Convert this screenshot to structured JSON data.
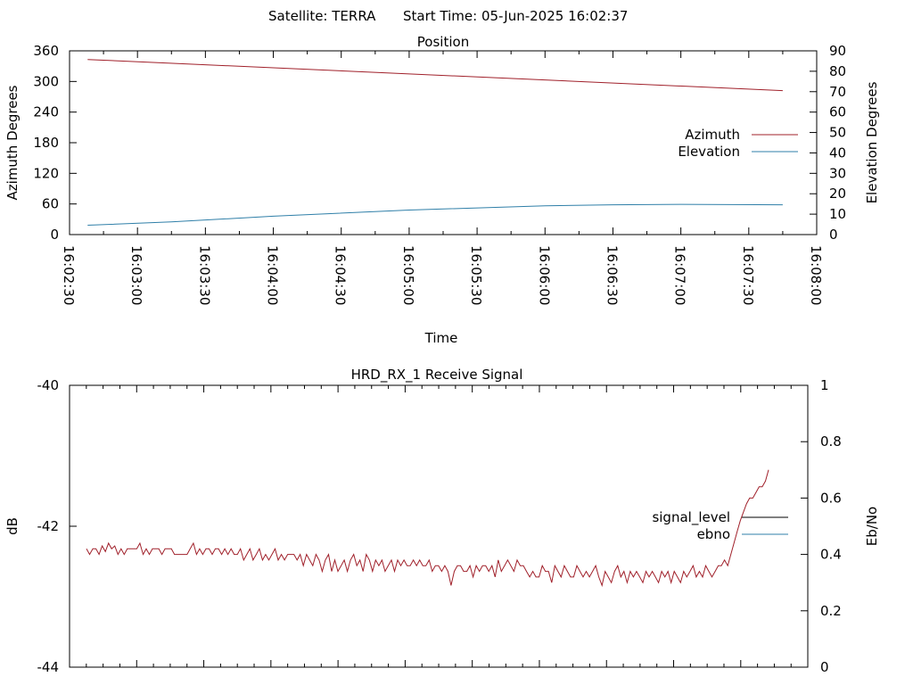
{
  "header": {
    "satellite": "Satellite: TERRA",
    "start_time": "Start Time: 05-Jun-2025 16:02:37"
  },
  "colors": {
    "red": "#a0202a",
    "blue": "#2f7fa8",
    "black": "#000000"
  },
  "chart_data": [
    {
      "type": "line",
      "title": "Position",
      "xlabel": "Time",
      "ylabel": "Azimuth Degrees",
      "y2label": "Elevation Degrees",
      "ylim": [
        0,
        360
      ],
      "y2lim": [
        0,
        90
      ],
      "yticks": [
        "0",
        "60",
        "120",
        "180",
        "240",
        "300",
        "360"
      ],
      "y2ticks": [
        "0",
        "10",
        "20",
        "30",
        "40",
        "50",
        "60",
        "70",
        "80",
        "90"
      ],
      "xticks": [
        "16:02:30",
        "16:03:00",
        "16:03:30",
        "16:04:00",
        "16:04:30",
        "16:05:00",
        "16:05:30",
        "16:06:00",
        "16:06:30",
        "16:07:00",
        "16:07:30",
        "16:08:00"
      ],
      "legend_position": "right",
      "series": [
        {
          "name": "Azimuth",
          "axis": "y",
          "x": [
            "16:02:38",
            "16:07:45"
          ],
          "values": [
            343,
            282
          ]
        },
        {
          "name": "Elevation",
          "axis": "y2",
          "x": [
            "16:02:38",
            "16:03:15",
            "16:04:00",
            "16:05:00",
            "16:06:00",
            "16:06:30",
            "16:07:00",
            "16:07:45"
          ],
          "values": [
            4.6,
            6.2,
            9.0,
            12.0,
            14.1,
            14.6,
            14.8,
            14.6
          ]
        }
      ]
    },
    {
      "type": "line",
      "title": "HRD_RX_1 Receive Signal",
      "ylabel": "dB",
      "y2label": "Eb/No",
      "ylim": [
        -44,
        -40
      ],
      "y2lim": [
        0,
        1
      ],
      "yticks": [
        "-44",
        "-42",
        "-40"
      ],
      "y2ticks": [
        "0",
        "0.2",
        "0.4",
        "0.6",
        "0.8",
        "1"
      ],
      "legend_position": "right",
      "series": [
        {
          "name": "signal_level",
          "axis": "y",
          "values": []
        },
        {
          "name": "ebno",
          "axis": "y2",
          "values": [
            0.42,
            0.4,
            0.42,
            0.42,
            0.4,
            0.43,
            0.41,
            0.44,
            0.42,
            0.43,
            0.4,
            0.42,
            0.4,
            0.42,
            0.42,
            0.42,
            0.42,
            0.44,
            0.4,
            0.42,
            0.4,
            0.42,
            0.42,
            0.42,
            0.4,
            0.42,
            0.42,
            0.42,
            0.4,
            0.4,
            0.4,
            0.4,
            0.4,
            0.42,
            0.44,
            0.4,
            0.42,
            0.4,
            0.42,
            0.42,
            0.4,
            0.42,
            0.42,
            0.4,
            0.42,
            0.4,
            0.42,
            0.4,
            0.4,
            0.42,
            0.38,
            0.4,
            0.42,
            0.38,
            0.4,
            0.42,
            0.38,
            0.4,
            0.38,
            0.4,
            0.42,
            0.38,
            0.4,
            0.38,
            0.4,
            0.4,
            0.4,
            0.38,
            0.4,
            0.36,
            0.4,
            0.38,
            0.36,
            0.4,
            0.38,
            0.34,
            0.38,
            0.4,
            0.34,
            0.38,
            0.34,
            0.36,
            0.38,
            0.34,
            0.38,
            0.4,
            0.36,
            0.38,
            0.34,
            0.4,
            0.38,
            0.34,
            0.38,
            0.36,
            0.38,
            0.34,
            0.36,
            0.38,
            0.34,
            0.38,
            0.36,
            0.38,
            0.36,
            0.36,
            0.38,
            0.36,
            0.38,
            0.36,
            0.36,
            0.38,
            0.34,
            0.36,
            0.36,
            0.34,
            0.36,
            0.34,
            0.29,
            0.34,
            0.36,
            0.36,
            0.34,
            0.34,
            0.36,
            0.32,
            0.36,
            0.34,
            0.36,
            0.36,
            0.34,
            0.36,
            0.32,
            0.38,
            0.34,
            0.36,
            0.38,
            0.36,
            0.34,
            0.38,
            0.36,
            0.36,
            0.34,
            0.32,
            0.34,
            0.32,
            0.32,
            0.36,
            0.34,
            0.34,
            0.3,
            0.36,
            0.34,
            0.32,
            0.36,
            0.34,
            0.32,
            0.32,
            0.36,
            0.34,
            0.32,
            0.34,
            0.32,
            0.34,
            0.36,
            0.32,
            0.29,
            0.34,
            0.32,
            0.3,
            0.34,
            0.36,
            0.32,
            0.34,
            0.3,
            0.34,
            0.32,
            0.34,
            0.32,
            0.3,
            0.34,
            0.32,
            0.34,
            0.32,
            0.3,
            0.34,
            0.32,
            0.34,
            0.3,
            0.34,
            0.32,
            0.3,
            0.34,
            0.32,
            0.34,
            0.36,
            0.32,
            0.34,
            0.32,
            0.36,
            0.34,
            0.32,
            0.34,
            0.36,
            0.36,
            0.38,
            0.36,
            0.4,
            0.44,
            0.48,
            0.52,
            0.55,
            0.58,
            0.6,
            0.6,
            0.62,
            0.64,
            0.64,
            0.66,
            0.7
          ]
        }
      ]
    }
  ]
}
